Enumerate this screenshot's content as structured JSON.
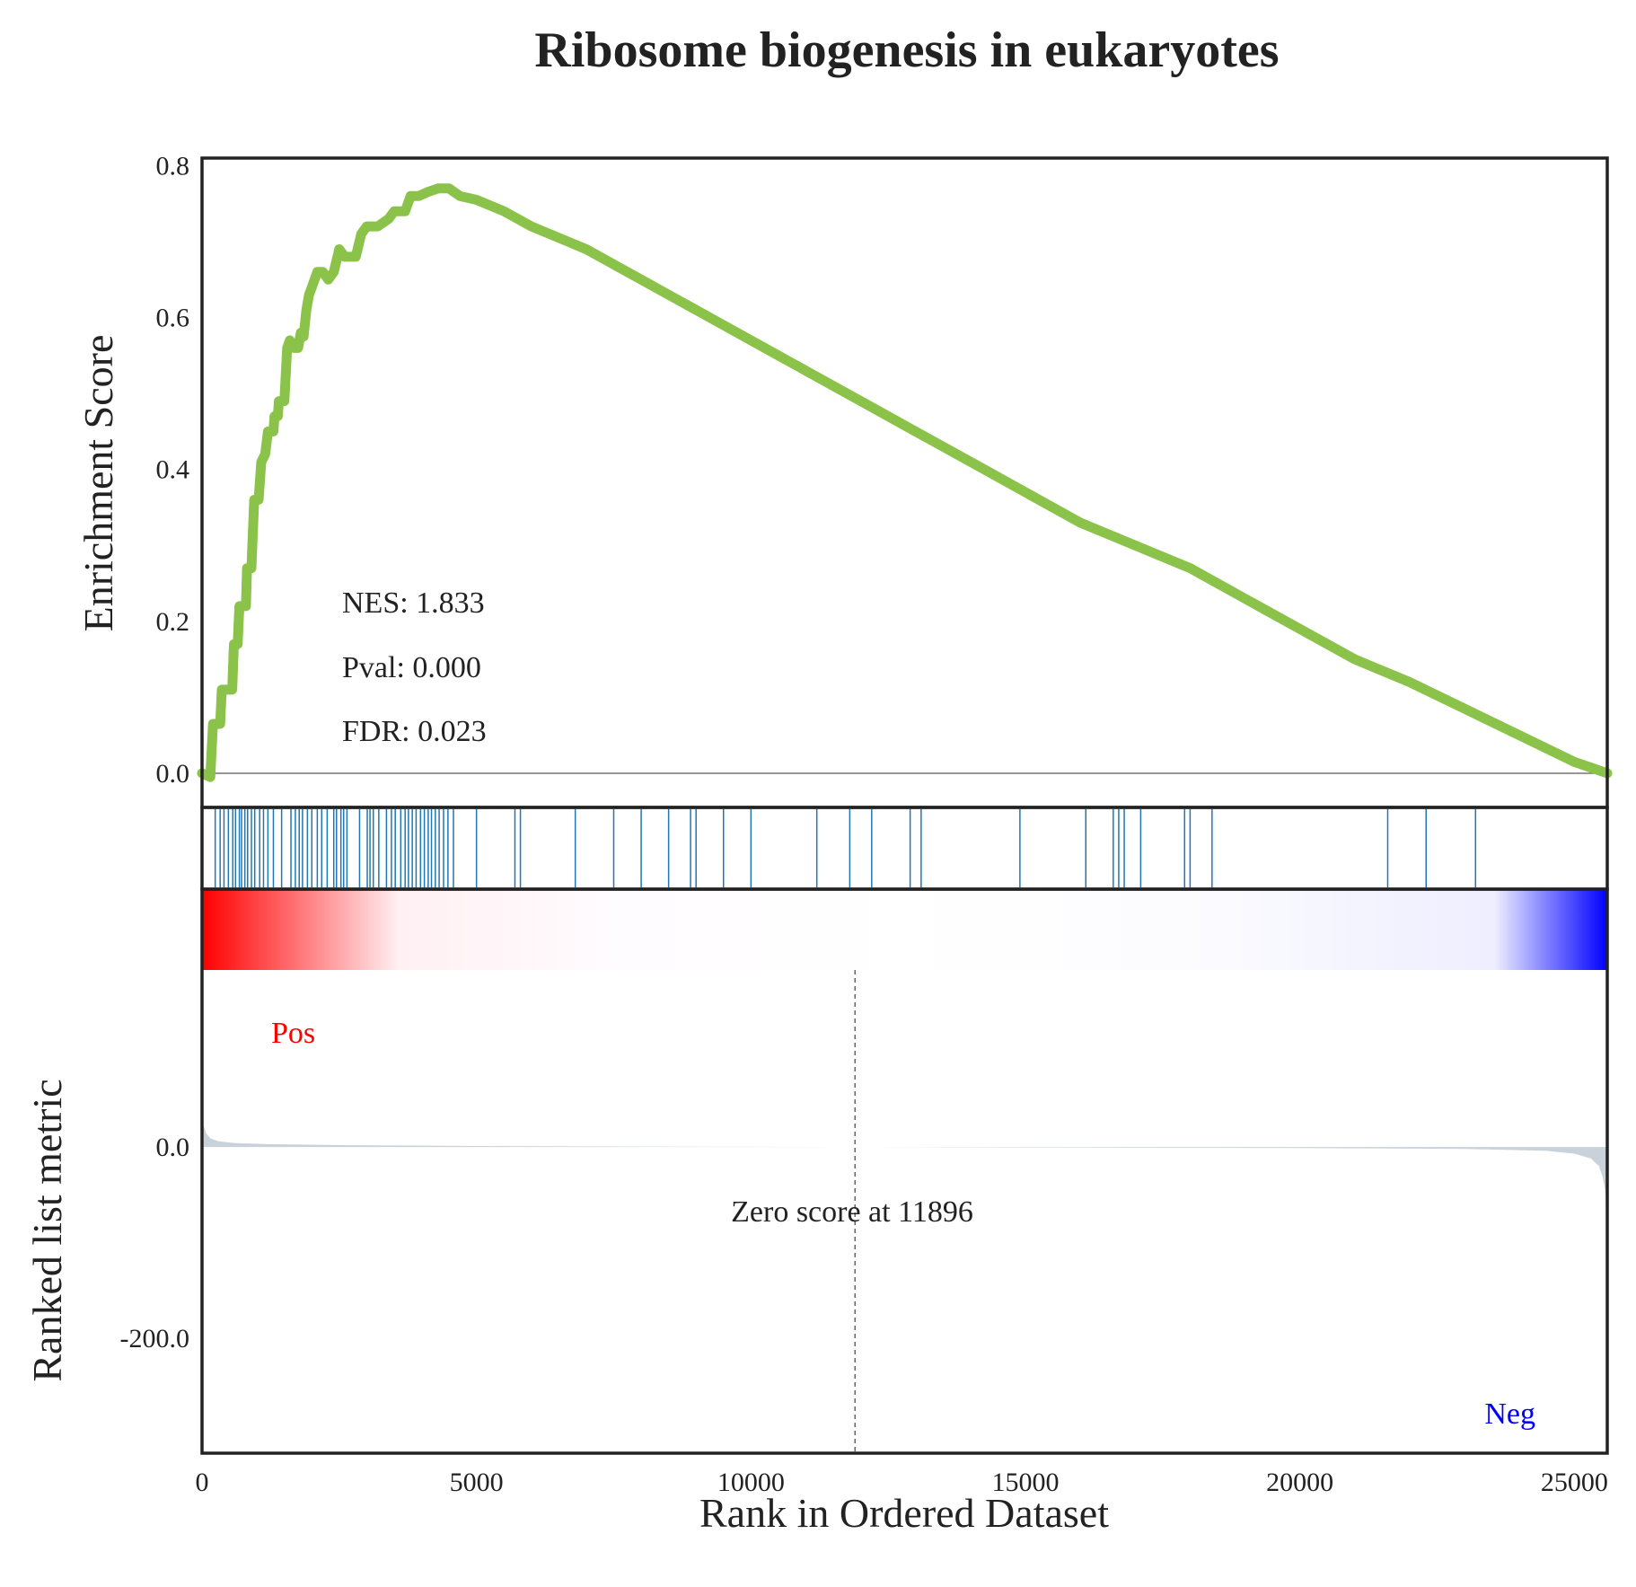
{
  "chart_data": {
    "type": "line",
    "title": "Ribosome biogenesis in eukaryotes",
    "xlabel": "Rank in Ordered Dataset",
    "xlim": [
      0,
      25600
    ],
    "x_ticks": [
      "0",
      "5000",
      "10000",
      "15000",
      "20000",
      "25000"
    ],
    "x_tick_values": [
      0,
      5000,
      10000,
      15000,
      20000,
      25000
    ],
    "enrichment": {
      "ylabel": "Enrichment Score",
      "ylim": [
        -0.045,
        0.81
      ],
      "y_ticks": [
        "0.0",
        "0.2",
        "0.4",
        "0.6",
        "0.8"
      ],
      "y_tick_values": [
        0.0,
        0.2,
        0.4,
        0.6,
        0.8
      ],
      "line_color": "#8bc34a",
      "x": [
        0,
        150,
        200,
        330,
        360,
        550,
        580,
        650,
        680,
        800,
        820,
        900,
        950,
        1030,
        1080,
        1150,
        1200,
        1300,
        1320,
        1380,
        1400,
        1500,
        1550,
        1600,
        1680,
        1750,
        1800,
        1850,
        1900,
        1950,
        2000,
        2100,
        2200,
        2300,
        2400,
        2500,
        2600,
        2800,
        2900,
        3000,
        3200,
        3400,
        3500,
        3700,
        3800,
        3950,
        4100,
        4300,
        4500,
        4700,
        5000,
        5500,
        6000,
        7000,
        8000,
        9000,
        10000,
        11000,
        12000,
        13000,
        14000,
        15000,
        16000,
        17000,
        18000,
        19000,
        20000,
        21000,
        22000,
        23000,
        24000,
        25000,
        25600
      ],
      "values": [
        0.0,
        -0.005,
        0.065,
        0.065,
        0.11,
        0.11,
        0.17,
        0.17,
        0.22,
        0.22,
        0.27,
        0.27,
        0.36,
        0.36,
        0.41,
        0.42,
        0.45,
        0.45,
        0.47,
        0.47,
        0.49,
        0.49,
        0.56,
        0.57,
        0.56,
        0.56,
        0.58,
        0.575,
        0.61,
        0.63,
        0.64,
        0.66,
        0.66,
        0.65,
        0.66,
        0.69,
        0.68,
        0.68,
        0.71,
        0.72,
        0.72,
        0.73,
        0.74,
        0.74,
        0.76,
        0.76,
        0.765,
        0.77,
        0.77,
        0.76,
        0.755,
        0.74,
        0.72,
        0.69,
        0.65,
        0.61,
        0.57,
        0.53,
        0.49,
        0.45,
        0.41,
        0.37,
        0.33,
        0.3,
        0.27,
        0.23,
        0.19,
        0.15,
        0.12,
        0.085,
        0.05,
        0.015,
        0.0
      ],
      "stats": {
        "nes": "NES: 1.833",
        "pval": "Pval: 0.000",
        "fdr": "FDR: 0.023"
      }
    },
    "hits": {
      "line_color": "#1f77b4",
      "x": [
        240,
        330,
        400,
        480,
        560,
        610,
        680,
        720,
        780,
        830,
        900,
        960,
        1050,
        1120,
        1200,
        1300,
        1450,
        1620,
        1700,
        1770,
        1830,
        1920,
        2000,
        2100,
        2180,
        2280,
        2400,
        2450,
        2530,
        2580,
        2640,
        2870,
        3010,
        3060,
        3120,
        3220,
        3360,
        3450,
        3520,
        3620,
        3700,
        3760,
        3830,
        3900,
        3980,
        4050,
        4120,
        4180,
        4250,
        4320,
        4400,
        4480,
        4580,
        5000,
        5700,
        5800,
        6800,
        7500,
        8000,
        8500,
        8900,
        9000,
        9500,
        10000,
        11200,
        11800,
        12200,
        12900,
        13100,
        14900,
        16100,
        16600,
        16700,
        16800,
        17100,
        17900,
        18000,
        18400,
        21600,
        22300,
        23200
      ]
    },
    "colorbar": {
      "start_color": "#ff0000",
      "mid_color": "#ffffff",
      "end_color": "#0000ff"
    },
    "metric": {
      "ylabel": "Ranked list metric",
      "ylim": [
        -320,
        185
      ],
      "y_ticks": [
        "0.0",
        "-200.0"
      ],
      "y_tick_values": [
        0.0,
        -200.0
      ],
      "fill_color": "#c8d2da",
      "x": [
        0,
        30,
        80,
        150,
        300,
        600,
        1200,
        2500,
        5000,
        8000,
        11896,
        15000,
        20000,
        23000,
        24500,
        25000,
        25300,
        25450,
        25520,
        25560,
        25590,
        25600
      ],
      "values": [
        30,
        22,
        14,
        9,
        6,
        4,
        3,
        2,
        1,
        0.5,
        0,
        -0.5,
        -1,
        -2,
        -4,
        -7,
        -12,
        -20,
        -32,
        -45,
        -70,
        -95
      ],
      "zero_score_rank": 11896,
      "zero_score_label": "Zero score at 11896",
      "pos_label": "Pos",
      "neg_label": "Neg",
      "pos_color": "#ff0000",
      "neg_color": "#0000ff"
    }
  }
}
